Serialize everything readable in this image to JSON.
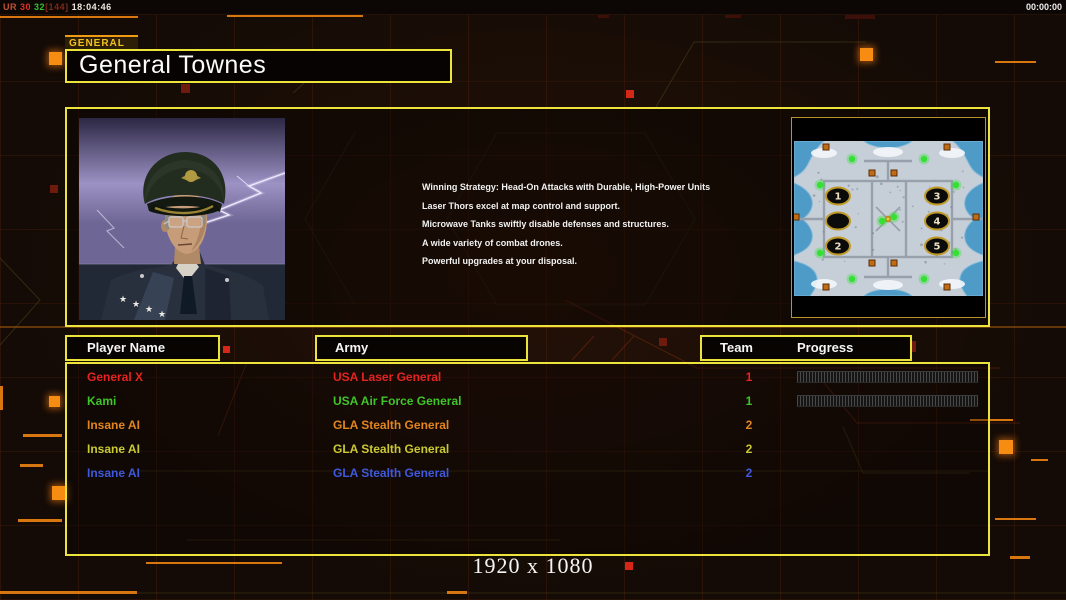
{
  "topbar": {
    "debug": {
      "label": "UR",
      "fps": "30",
      "stat": "32",
      "bracket": "[144]",
      "clock": "18:04:46"
    },
    "timer": "00:00:00"
  },
  "header": {
    "tab_label": "GENERAL",
    "title": "General Townes"
  },
  "general_info": {
    "strategy_lines": [
      "Winning Strategy: Head-On Attacks with Durable, High-Power Units",
      "Laser Thors excel at map control and support.",
      "Microwave Tanks swiftly disable defenses and structures.",
      "A wide variety of combat drones.",
      "Powerful upgrades at your disposal."
    ]
  },
  "map": {
    "slots": [
      {
        "label": "1",
        "col": 0,
        "row": 0
      },
      {
        "label": "3",
        "col": 1,
        "row": 0
      },
      {
        "label": "",
        "col": 0,
        "row": 1
      },
      {
        "label": "4",
        "col": 1,
        "row": 1
      },
      {
        "label": "2",
        "col": 0,
        "row": 2
      },
      {
        "label": "5",
        "col": 1,
        "row": 2
      }
    ]
  },
  "table": {
    "headers": {
      "player_name": "Player Name",
      "army": "Army",
      "team": "Team",
      "progress": "Progress"
    },
    "players": [
      {
        "name": "General X",
        "army": "USA Laser General",
        "team": "1",
        "color": "#e52320",
        "has_progress_bar": true
      },
      {
        "name": "Kami",
        "army": "USA Air Force General",
        "team": "1",
        "color": "#3fc42a",
        "has_progress_bar": true
      },
      {
        "name": "Insane AI",
        "army": "GLA Stealth General",
        "team": "2",
        "color": "#e2851f",
        "has_progress_bar": false
      },
      {
        "name": "Insane AI",
        "army": "GLA Stealth General",
        "team": "2",
        "color": "#c9c934",
        "has_progress_bar": false
      },
      {
        "name": "Insane AI",
        "army": "GLA Stealth General",
        "team": "2",
        "color": "#3e59dd",
        "has_progress_bar": false
      }
    ]
  },
  "footer": {
    "resolution": "1920 x 1080"
  },
  "colors": {
    "panel_border": "#ece43a",
    "accent_orange": "#f78c12",
    "debug_label": "#c05030",
    "debug_fps": "#e03222",
    "debug_stat": "#35c32e",
    "debug_bracket": "#7e2a16",
    "debug_clock": "#efe9dd"
  }
}
